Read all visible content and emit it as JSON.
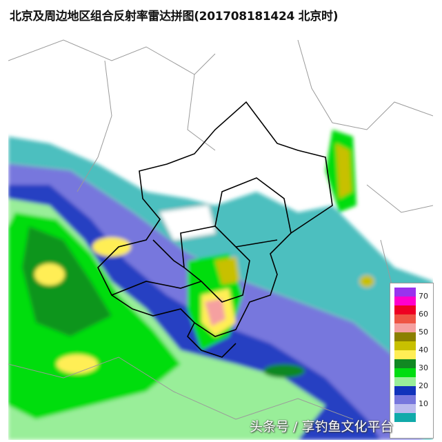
{
  "title": "北京及周边地区组合反射率雷达拼图(201708181424  北京时)",
  "watermark": "头条号 / 享钓鱼文化平台",
  "legend": {
    "bands": [
      "#9933ee",
      "#ff00cc",
      "#ee0022",
      "#ee5544",
      "#f5a0a0",
      "#8b8000",
      "#c8c000",
      "#ffee55",
      "#118822",
      "#00dd11",
      "#99ee99",
      "#1133bb",
      "#7777dd",
      "#bbbbee",
      "#11aaaa"
    ],
    "ticks": [
      "70",
      "60",
      "50",
      "40",
      "30",
      "20",
      "10"
    ]
  },
  "colors": {
    "boundary_province": "#000000",
    "boundary_other": "#9a9a9a",
    "background": "#ffffff"
  }
}
